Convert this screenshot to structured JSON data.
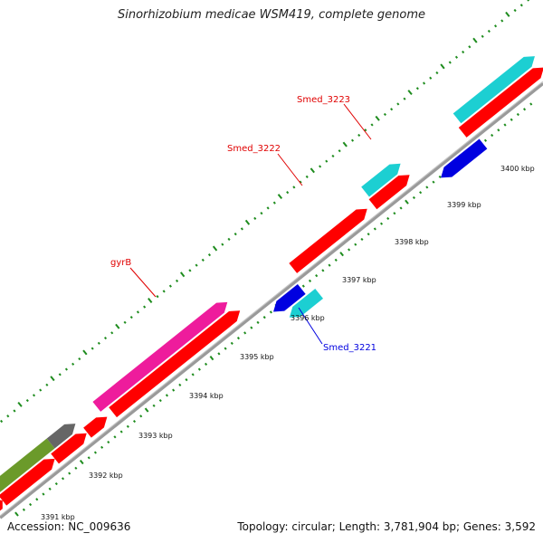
{
  "title": "Sinorhizobium medicae WSM419, complete genome",
  "footer": {
    "accession": "Accession: NC_009636",
    "info": "Topology: circular; Length: 3,781,904 bp; Genes: 3,592"
  },
  "colors": {
    "backbone": "#8a8a8a",
    "tick": "#1e8c1e",
    "forward_cds": "#ff0000",
    "reverse_cds": "#0000e0",
    "gene_label_forward": "#e00000",
    "gene_label_reverse": "#0000e0",
    "cyan_feature": "#1ccfd2",
    "magenta_feature": "#ee1c9c",
    "olive_feature": "#6b9a2a",
    "gray_feature": "#666666"
  },
  "scale_labels": [
    {
      "text": "3391 kbp"
    },
    {
      "text": "3392 kbp"
    },
    {
      "text": "3393 kbp"
    },
    {
      "text": "3394 kbp"
    },
    {
      "text": "3395 kbp"
    },
    {
      "text": "3396 kbp"
    },
    {
      "text": "3397 kbp"
    },
    {
      "text": "3398 kbp"
    },
    {
      "text": "3399 kbp"
    },
    {
      "text": "3400 kbp"
    }
  ],
  "gene_labels": [
    {
      "text": "gyrB",
      "strand": "forward"
    },
    {
      "text": "Smed_3222",
      "strand": "forward"
    },
    {
      "text": "Smed_3223",
      "strand": "forward"
    },
    {
      "text": "Smed_3221",
      "strand": "reverse"
    }
  ]
}
